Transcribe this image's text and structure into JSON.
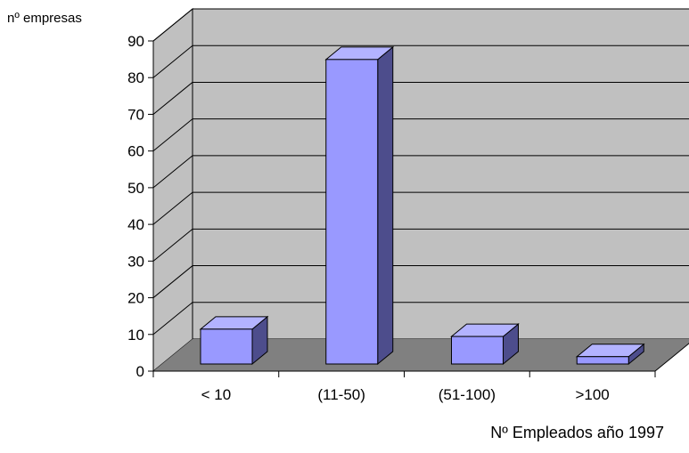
{
  "chart_data": {
    "type": "bar",
    "style": "3d-column",
    "ylabel": "nº empresas",
    "xlabel": "Nº Empleados año 1997",
    "categories": [
      "< 10",
      "(11-50)",
      "(51-100)",
      ">100"
    ],
    "values": [
      9.5,
      83,
      7.5,
      2
    ],
    "ylim": [
      0,
      90
    ],
    "yticks": [
      0,
      10,
      20,
      30,
      40,
      50,
      60,
      70,
      80,
      90
    ],
    "grid": true,
    "legend": "none"
  },
  "colors": {
    "bar_front": "#9999FF",
    "bar_top": "#B3B3FF",
    "bar_side": "#4D4D8C",
    "back_wall": "#C0C0C0",
    "side_wall": "#C0C0C0",
    "floor": "#808080",
    "grid": "#000000"
  }
}
